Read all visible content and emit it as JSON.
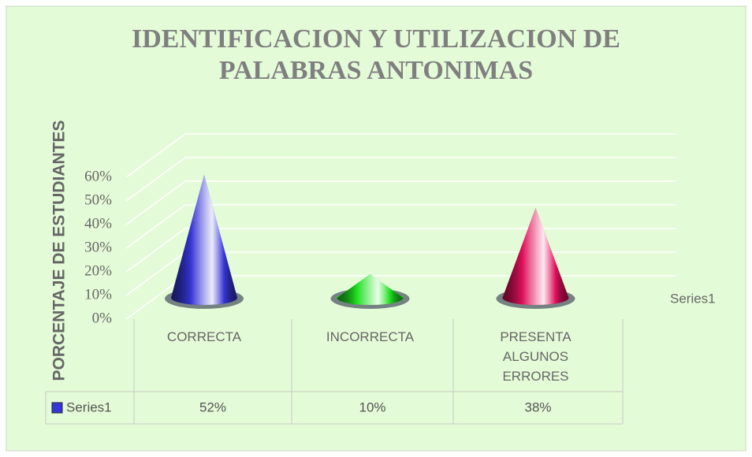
{
  "chart_data": {
    "type": "cone",
    "title": "IDENTIFICACION Y UTILIZACION DE PALABRAS ANTONIMAS",
    "y_axis_label": "PORCENTAJE DE ESTUDIANTES",
    "categories": [
      "CORRECTA",
      "INCORRECTA",
      "PRESENTA ALGUNOS ERRORES"
    ],
    "series": [
      {
        "name": "Series1",
        "colors": [
          "#3636d6",
          "#1fe01f",
          "#e0105a"
        ],
        "values": [
          52,
          10,
          38
        ],
        "value_labels": [
          "52%",
          "10%",
          "38%"
        ]
      }
    ],
    "ylim": [
      0,
      60
    ],
    "yticks": [
      {
        "value": 0,
        "label": "0%"
      },
      {
        "value": 10,
        "label": "10%"
      },
      {
        "value": 20,
        "label": "20%"
      },
      {
        "value": 30,
        "label": "30%"
      },
      {
        "value": 40,
        "label": "40%"
      },
      {
        "value": 50,
        "label": "50%"
      },
      {
        "value": 60,
        "label": "60%"
      }
    ],
    "grid": true,
    "legend": "right",
    "data_table": true
  }
}
